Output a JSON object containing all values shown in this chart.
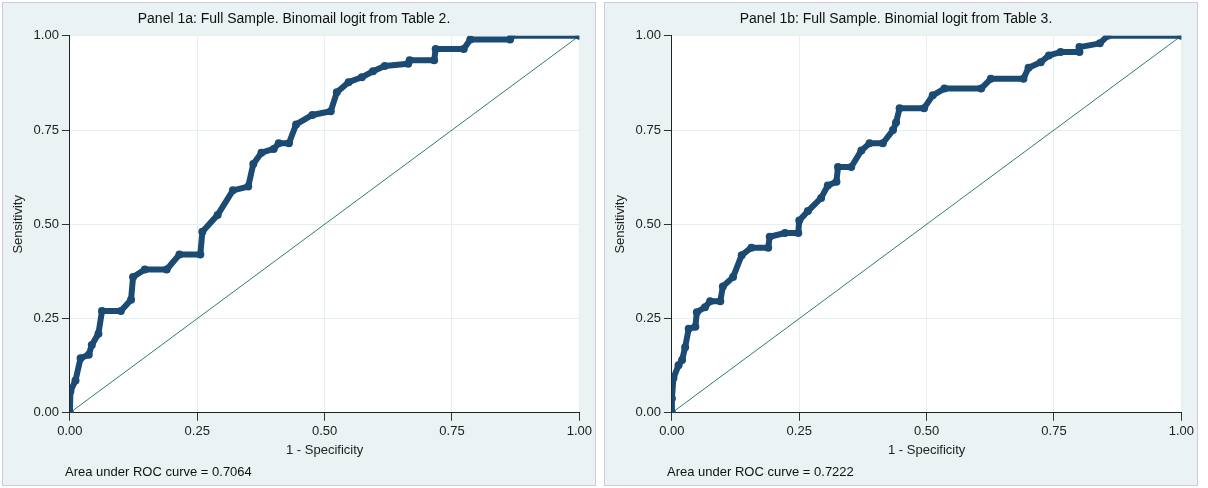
{
  "chart_data": [
    {
      "type": "line",
      "title": "Panel 1a: Full Sample. Binomail logit from Table 2.",
      "xlabel": "1 - Specificity",
      "ylabel": "Sensitivity",
      "annotations": [
        "Area under ROC curve = 0.7064"
      ],
      "grid": true,
      "xlim": [
        0,
        1
      ],
      "ylim": [
        0,
        1
      ],
      "xticks": [
        {
          "value": 0,
          "label": "0.00"
        },
        {
          "value": 0.25,
          "label": "0.25"
        },
        {
          "value": 0.5,
          "label": "0.50"
        },
        {
          "value": 0.75,
          "label": "0.75"
        },
        {
          "value": 1,
          "label": "1.00"
        }
      ],
      "yticks": [
        {
          "value": 0,
          "label": "0.00"
        },
        {
          "value": 0.25,
          "label": "0.25"
        },
        {
          "value": 0.5,
          "label": "0.50"
        },
        {
          "value": 0.75,
          "label": "0.75"
        },
        {
          "value": 1,
          "label": "1.00"
        }
      ],
      "series": [
        {
          "color": "#1b4a72",
          "marker": "circle",
          "x": [
            0,
            0.001,
            0.011,
            0.021,
            0.037,
            0.043,
            0.056,
            0.063,
            0.1,
            0.12,
            0.124,
            0.147,
            0.19,
            0.215,
            0.256,
            0.26,
            0.29,
            0.32,
            0.35,
            0.36,
            0.376,
            0.4,
            0.41,
            0.43,
            0.444,
            0.476,
            0.512,
            0.524,
            0.547,
            0.573,
            0.595,
            0.618,
            0.664,
            0.667,
            0.715,
            0.718,
            0.773,
            0.786,
            0.864,
            0.867,
            1
          ],
          "values": [
            0,
            0.057,
            0.086,
            0.145,
            0.154,
            0.18,
            0.21,
            0.27,
            0.27,
            0.3,
            0.36,
            0.38,
            0.38,
            0.42,
            0.42,
            0.48,
            0.525,
            0.59,
            0.6,
            0.66,
            0.69,
            0.7,
            0.715,
            0.715,
            0.765,
            0.79,
            0.8,
            0.85,
            0.877,
            0.89,
            0.906,
            0.92,
            0.926,
            0.935,
            0.935,
            0.965,
            0.965,
            0.99,
            0.99,
            1,
            1
          ]
        },
        {
          "color": "#2e7d6e",
          "marker": "none",
          "x": [
            0,
            1
          ],
          "values": [
            0,
            1
          ]
        }
      ]
    },
    {
      "type": "line",
      "title": "Panel 1b: Full Sample. Binomial logit from Table 3.",
      "xlabel": "1 - Specificity",
      "ylabel": "Sensitivity",
      "annotations": [
        "Area under ROC curve = 0.7222"
      ],
      "grid": true,
      "xlim": [
        0,
        1
      ],
      "ylim": [
        0,
        1
      ],
      "xticks": [
        {
          "value": 0,
          "label": "0.00"
        },
        {
          "value": 0.25,
          "label": "0.25"
        },
        {
          "value": 0.5,
          "label": "0.50"
        },
        {
          "value": 0.75,
          "label": "0.75"
        },
        {
          "value": 1,
          "label": "1.00"
        }
      ],
      "yticks": [
        {
          "value": 0,
          "label": "0.00"
        },
        {
          "value": 0.25,
          "label": "0.25"
        },
        {
          "value": 0.5,
          "label": "0.50"
        },
        {
          "value": 0.75,
          "label": "0.75"
        },
        {
          "value": 1,
          "label": "1.00"
        }
      ],
      "series": [
        {
          "color": "#1b4a72",
          "marker": "circle",
          "x": [
            0,
            0,
            0.003,
            0.013,
            0.02,
            0.026,
            0.033,
            0.046,
            0.049,
            0.065,
            0.075,
            0.095,
            0.1,
            0.12,
            0.137,
            0.156,
            0.189,
            0.192,
            0.222,
            0.248,
            0.25,
            0.267,
            0.293,
            0.306,
            0.323,
            0.326,
            0.352,
            0.372,
            0.388,
            0.414,
            0.434,
            0.44,
            0.447,
            0.495,
            0.512,
            0.535,
            0.607,
            0.626,
            0.69,
            0.7,
            0.724,
            0.74,
            0.763,
            0.8,
            0.8,
            0.84,
            0.855,
            1
          ],
          "values": [
            0,
            0.038,
            0.092,
            0.126,
            0.14,
            0.174,
            0.223,
            0.228,
            0.267,
            0.28,
            0.296,
            0.296,
            0.335,
            0.36,
            0.418,
            0.438,
            0.438,
            0.467,
            0.477,
            0.477,
            0.51,
            0.535,
            0.57,
            0.603,
            0.613,
            0.652,
            0.652,
            0.696,
            0.715,
            0.715,
            0.75,
            0.77,
            0.808,
            0.808,
            0.842,
            0.86,
            0.86,
            0.886,
            0.886,
            0.915,
            0.93,
            0.948,
            0.957,
            0.957,
            0.97,
            0.98,
            1,
            1
          ]
        },
        {
          "color": "#2e7d6e",
          "marker": "none",
          "x": [
            0,
            1
          ],
          "values": [
            0,
            1
          ]
        }
      ]
    }
  ]
}
